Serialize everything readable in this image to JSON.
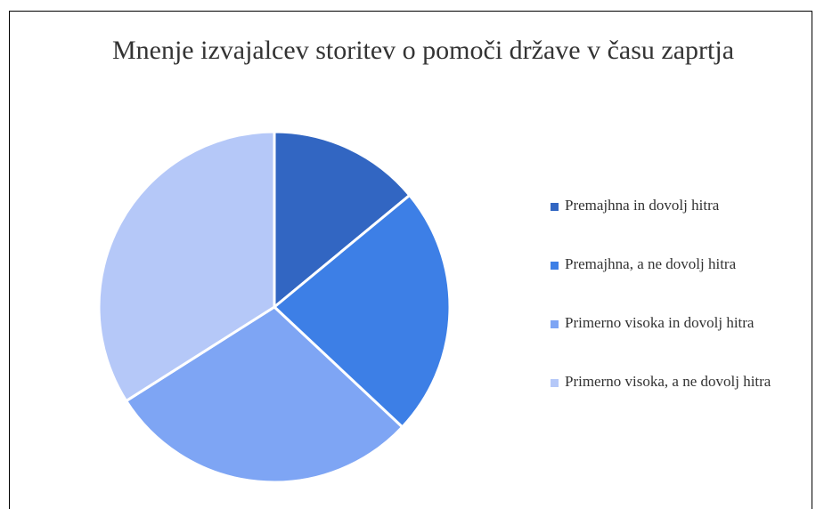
{
  "chart_data": {
    "type": "pie",
    "title": "Mnenje izvajalcev storitev o pomoči države v času zaprtja",
    "categories": [
      "Premajhna in dovolj hitra",
      "Premajhna, a ne dovolj hitra",
      "Primerno visoka in dovolj hitra",
      "Primerno visoka, a ne dovolj hitra"
    ],
    "values": [
      14,
      23,
      29,
      34
    ],
    "colors": [
      "#3266c2",
      "#3d7fe6",
      "#7ea5f4",
      "#b5c8f8"
    ],
    "legend": "right"
  }
}
